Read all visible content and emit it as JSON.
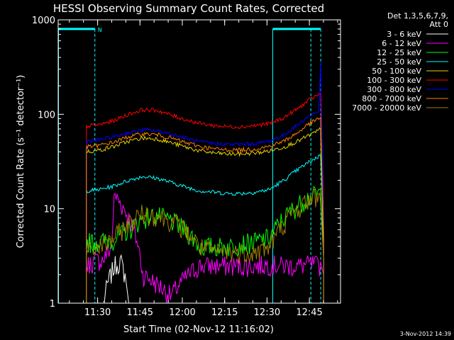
{
  "footer_timestamp": "3-Nov-2012 14:39",
  "chart_data": {
    "type": "line",
    "title": "HESSI Observing Summary Count Rates, Corrected",
    "xlabel": "Start Time (02-Nov-12 11:16:02)",
    "ylabel": "Corrected Count Rate (s⁻¹ detector⁻¹)",
    "yscale": "log",
    "ylim": [
      1,
      1000
    ],
    "y_ticks": [
      1,
      10,
      100,
      1000
    ],
    "y_tick_labels": [
      "1",
      "10",
      "100",
      "1000"
    ],
    "x_range_minutes": [
      0,
      100
    ],
    "x_ticks_minutes": [
      13.97,
      28.97,
      43.97,
      58.97,
      73.97,
      88.97
    ],
    "x_tick_labels": [
      "11:30",
      "11:45",
      "12:00",
      "12:15",
      "12:30",
      "12:45"
    ],
    "legend_header": [
      "Det 1,3,5,6,7,9,",
      "Att 0"
    ],
    "legend_position": "right",
    "series": [
      {
        "name": "3 - 6 keV",
        "color": "#ffffff",
        "x": [
          16,
          20,
          22,
          24,
          25
        ],
        "y": [
          1,
          2.5,
          2.8,
          1.8,
          1
        ]
      },
      {
        "name": "6 - 12 keV",
        "color": "#ff00ff",
        "x": [
          10,
          13,
          16,
          19,
          20,
          30,
          40,
          50,
          60,
          70,
          75,
          80,
          85,
          90,
          93,
          94
        ],
        "y": [
          2.5,
          2.8,
          2.9,
          4,
          14,
          2,
          1.2,
          2.5,
          2.5,
          2.5,
          2.6,
          2.5,
          2.5,
          2.6,
          2.5,
          2
        ]
      },
      {
        "name": "12 - 25 keV",
        "color": "#00ff00",
        "x": [
          10,
          15,
          20,
          25,
          30,
          35,
          40,
          45,
          50,
          55,
          60,
          65,
          70,
          75,
          80,
          85,
          88,
          91,
          93,
          94
        ],
        "y": [
          4.5,
          4.5,
          4.8,
          6,
          8,
          8.5,
          7.5,
          6,
          4,
          4,
          4,
          4.3,
          4.5,
          5,
          8,
          11,
          13,
          14,
          15,
          3
        ]
      },
      {
        "name": "25 - 50 keV",
        "color": "#00ffff",
        "x": [
          10,
          15,
          20,
          25,
          30,
          35,
          40,
          45,
          50,
          55,
          60,
          65,
          70,
          75,
          80,
          85,
          88,
          91,
          93,
          94
        ],
        "y": [
          15.5,
          16,
          17.5,
          20,
          22,
          21,
          19,
          17,
          15.5,
          15,
          14.5,
          14.5,
          15,
          16,
          20,
          26,
          30,
          34,
          37,
          8
        ]
      },
      {
        "name": "50 - 100 keV",
        "color": "#e6d200",
        "x": [
          10,
          15,
          20,
          25,
          30,
          35,
          40,
          45,
          50,
          55,
          60,
          65,
          70,
          75,
          80,
          85,
          88,
          91,
          93,
          94
        ],
        "y": [
          40,
          42,
          46,
          52,
          56,
          55,
          50,
          45,
          41,
          39,
          38,
          38,
          39,
          41,
          45,
          52,
          58,
          64,
          70,
          3
        ]
      },
      {
        "name": "100 - 300 keV",
        "color": "#ff0000",
        "x": [
          10,
          15,
          20,
          25,
          30,
          35,
          40,
          45,
          50,
          55,
          60,
          65,
          70,
          75,
          80,
          85,
          88,
          91,
          93,
          94
        ],
        "y": [
          75,
          78,
          86,
          100,
          112,
          110,
          98,
          88,
          80,
          76,
          74,
          74,
          76,
          80,
          92,
          115,
          135,
          155,
          165,
          15
        ]
      },
      {
        "name": "300 - 800 keV",
        "color": "#0000ff",
        "x": [
          10,
          15,
          20,
          25,
          30,
          35,
          40,
          45,
          50,
          55,
          60,
          65,
          70,
          75,
          80,
          85,
          88,
          91,
          92.5,
          93,
          94
        ],
        "y": [
          52,
          54,
          58,
          64,
          68,
          67,
          62,
          56,
          51,
          49,
          48,
          48,
          49,
          52,
          60,
          78,
          92,
          104,
          108,
          400,
          10
        ]
      },
      {
        "name": "800 - 7000 keV",
        "color": "#ff8000",
        "x": [
          10,
          15,
          20,
          25,
          30,
          35,
          40,
          45,
          50,
          55,
          60,
          65,
          70,
          75,
          80,
          85,
          88,
          91,
          93,
          94
        ],
        "y": [
          45,
          47,
          51,
          58,
          62,
          61,
          56,
          50,
          46,
          43,
          42,
          42,
          43,
          46,
          52,
          64,
          76,
          86,
          92,
          5
        ]
      },
      {
        "name": "7000 - 20000 keV",
        "color": "#a08000",
        "x": [
          10,
          15,
          20,
          25,
          30,
          35,
          40,
          45,
          50,
          55,
          60,
          65,
          70,
          75,
          80,
          85,
          88,
          91,
          93,
          94
        ],
        "y": [
          3.5,
          4,
          5,
          7,
          9,
          8.5,
          7.5,
          6,
          4,
          3.5,
          3.5,
          3.5,
          3.5,
          4,
          7,
          10,
          12,
          13.5,
          14,
          3
        ]
      }
    ],
    "flag_lines": {
      "color": "#00ffff",
      "label": "N",
      "segments": [
        {
          "x": [
            0,
            13
          ],
          "y": 800
        },
        {
          "x": [
            76,
            93
          ],
          "y": 800
        }
      ],
      "dashed_verticals_minutes": [
        13,
        89.5,
        93
      ]
    }
  }
}
